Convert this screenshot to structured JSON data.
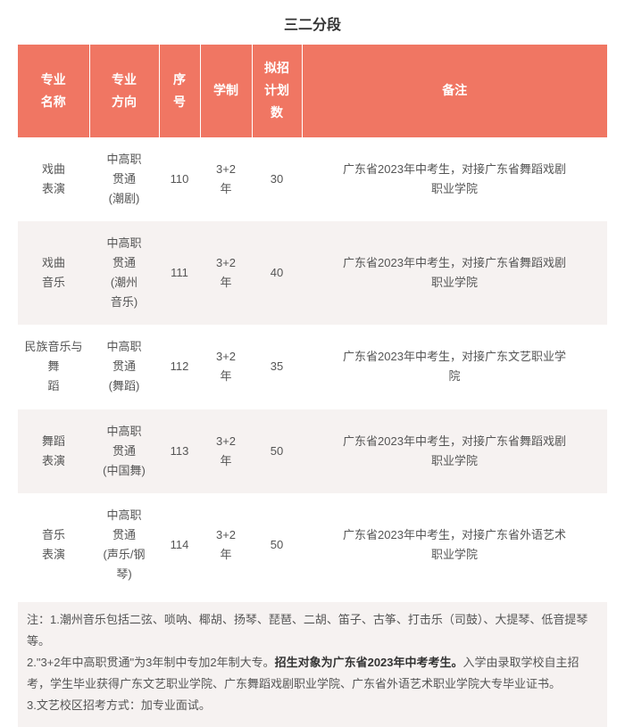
{
  "title": "三二分段",
  "table": {
    "headers": {
      "col1": "专业\n名称",
      "col2": "专业\n方向",
      "col3": "序\n号",
      "col4": "学制",
      "col5": "拟招\n计划\n数",
      "col6": "备注"
    },
    "col_widths": [
      "80px",
      "78px",
      "46px",
      "58px",
      "56px",
      "342px"
    ],
    "header_bg": "#f07663",
    "header_fg": "#ffffff",
    "row_alt_bg": "#f6f2f1",
    "rows": [
      {
        "c1": "戏曲\n表演",
        "c2": "中高职\n贯通\n(潮剧)",
        "c3": "110",
        "c4": "3+2\n年",
        "c5": "30",
        "c6": "广东省2023年中考生，对接广东省舞蹈戏剧\n职业学院"
      },
      {
        "c1": "戏曲\n音乐",
        "c2": "中高职\n贯通\n(潮州\n音乐)",
        "c3": "111",
        "c4": "3+2\n年",
        "c5": "40",
        "c6": "广东省2023年中考生，对接广东省舞蹈戏剧\n职业学院"
      },
      {
        "c1": "民族音乐与舞\n蹈",
        "c2": "中高职\n贯通\n(舞蹈)",
        "c3": "112",
        "c4": "3+2\n年",
        "c5": "35",
        "c6": "广东省2023年中考生，对接广东文艺职业学\n院"
      },
      {
        "c1": "舞蹈\n表演",
        "c2": "中高职\n贯通\n(中国舞)",
        "c3": "113",
        "c4": "3+2\n年",
        "c5": "50",
        "c6": "广东省2023年中考生，对接广东省舞蹈戏剧\n职业学院"
      },
      {
        "c1": "音乐\n表演",
        "c2": "中高职\n贯通\n(声乐/钢\n琴)",
        "c3": "114",
        "c4": "3+2\n年",
        "c5": "50",
        "c6": "广东省2023年中考生，对接广东省外语艺术\n职业学院"
      }
    ]
  },
  "notes": {
    "n1": "注：1.潮州音乐包括二弦、唢呐、椰胡、扬琴、琵琶、二胡、笛子、古筝、打击乐（司鼓）、大提琴、低音提琴等。",
    "n2a": "2.\"3+2年中高职贯通\"为3年制中专加2年制大专。",
    "n2b": "招生对象为广东省2023年中考考生。",
    "n2c": "入学由录取学校自主招考，学生毕业获得广东文艺职业学院、广东舞蹈戏剧职业学院、广东省外语艺术职业学院大专毕业证书。",
    "n3": "3.文艺校区招考方式：加专业面试。"
  }
}
